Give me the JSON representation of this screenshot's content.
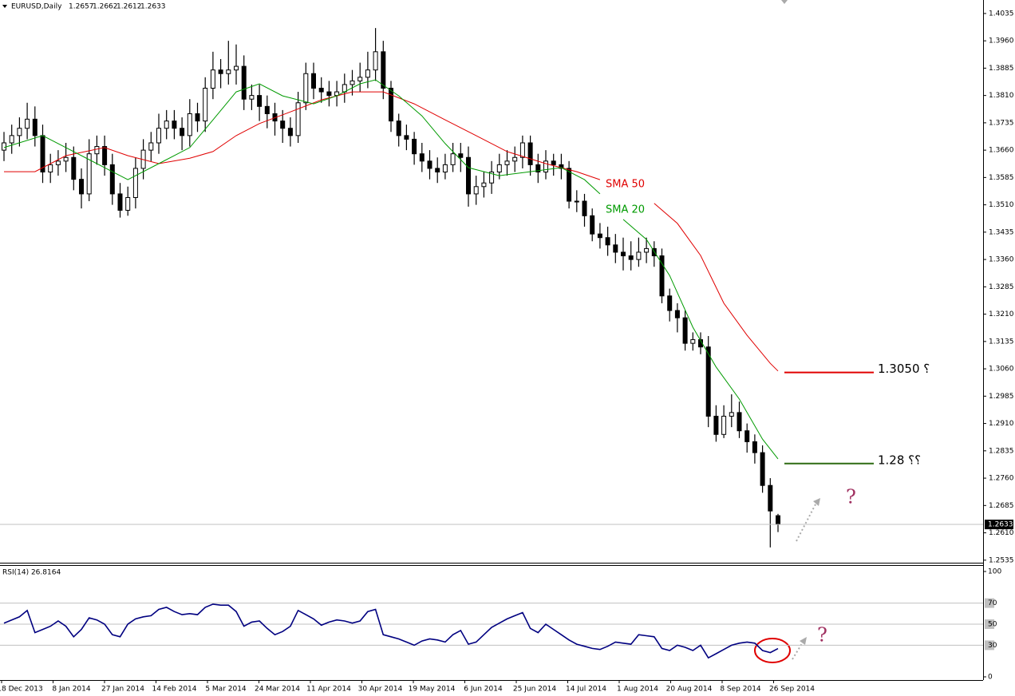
{
  "chart_data": {
    "type": "candlestick",
    "title": "EURUSD,Daily",
    "open": [
      1.366,
      1.368,
      1.37,
      1.372,
      1.3745,
      1.37,
      1.36,
      1.362,
      1.363,
      1.364,
      1.358,
      1.354,
      1.365,
      1.367,
      1.362,
      1.354,
      1.3495,
      1.353,
      1.361,
      1.366,
      1.368,
      1.372,
      1.374,
      1.372,
      1.37,
      1.376,
      1.374,
      1.383,
      1.388,
      1.387,
      1.388,
      1.389,
      1.38,
      1.381,
      1.378,
      1.376,
      1.374,
      1.372,
      1.37,
      1.379,
      1.387,
      1.383,
      1.382,
      1.381,
      1.382,
      1.384,
      1.385,
      1.386,
      1.388,
      1.393,
      1.383,
      1.374,
      1.37,
      1.369,
      1.365,
      1.363,
      1.361,
      1.36,
      1.362,
      1.365,
      1.364,
      1.354,
      1.356,
      1.357,
      1.36,
      1.362,
      1.363,
      1.364,
      1.368,
      1.362,
      1.36,
      1.363,
      1.362,
      1.361,
      1.352,
      1.352,
      1.348,
      1.343,
      1.342,
      1.34,
      1.338,
      1.337,
      1.336,
      1.338,
      1.339,
      1.337,
      1.326,
      1.322,
      1.32,
      1.313,
      1.314,
      1.312,
      1.293,
      1.288,
      1.293,
      1.294,
      1.289,
      1.286,
      1.283,
      1.274,
      1.2657
    ],
    "high": [
      1.371,
      1.373,
      1.375,
      1.379,
      1.378,
      1.373,
      1.365,
      1.366,
      1.368,
      1.367,
      1.361,
      1.369,
      1.37,
      1.37,
      1.365,
      1.357,
      1.356,
      1.364,
      1.369,
      1.371,
      1.376,
      1.377,
      1.377,
      1.375,
      1.38,
      1.379,
      1.386,
      1.393,
      1.391,
      1.396,
      1.395,
      1.392,
      1.384,
      1.384,
      1.381,
      1.379,
      1.377,
      1.375,
      1.382,
      1.39,
      1.39,
      1.386,
      1.385,
      1.385,
      1.387,
      1.388,
      1.39,
      1.393,
      1.3995,
      1.396,
      1.385,
      1.376,
      1.373,
      1.371,
      1.368,
      1.366,
      1.364,
      1.365,
      1.368,
      1.368,
      1.367,
      1.359,
      1.36,
      1.363,
      1.365,
      1.366,
      1.367,
      1.37,
      1.37,
      1.365,
      1.366,
      1.365,
      1.365,
      1.363,
      1.355,
      1.354,
      1.35,
      1.346,
      1.345,
      1.343,
      1.342,
      1.341,
      1.342,
      1.342,
      1.341,
      1.339,
      1.328,
      1.324,
      1.322,
      1.316,
      1.316,
      1.315,
      1.296,
      1.296,
      1.299,
      1.297,
      1.291,
      1.288,
      1.285,
      1.276,
      1.2662
    ],
    "low": [
      1.363,
      1.365,
      1.367,
      1.369,
      1.367,
      1.357,
      1.357,
      1.359,
      1.36,
      1.355,
      1.35,
      1.352,
      1.362,
      1.359,
      1.351,
      1.3475,
      1.348,
      1.35,
      1.358,
      1.363,
      1.365,
      1.369,
      1.369,
      1.366,
      1.367,
      1.371,
      1.371,
      1.38,
      1.383,
      1.384,
      1.384,
      1.377,
      1.377,
      1.374,
      1.372,
      1.37,
      1.368,
      1.367,
      1.368,
      1.377,
      1.38,
      1.379,
      1.378,
      1.378,
      1.379,
      1.381,
      1.382,
      1.383,
      1.385,
      1.38,
      1.371,
      1.367,
      1.366,
      1.362,
      1.36,
      1.358,
      1.357,
      1.358,
      1.36,
      1.36,
      1.3505,
      1.351,
      1.353,
      1.354,
      1.358,
      1.359,
      1.36,
      1.361,
      1.359,
      1.357,
      1.358,
      1.359,
      1.358,
      1.35,
      1.349,
      1.345,
      1.341,
      1.339,
      1.337,
      1.335,
      1.333,
      1.333,
      1.334,
      1.335,
      1.334,
      1.324,
      1.319,
      1.316,
      1.311,
      1.311,
      1.31,
      1.29,
      1.286,
      1.287,
      1.29,
      1.287,
      1.283,
      1.28,
      1.272,
      1.257,
      1.2612
    ],
    "close": [
      1.368,
      1.37,
      1.372,
      1.3745,
      1.37,
      1.36,
      1.362,
      1.363,
      1.364,
      1.358,
      1.354,
      1.365,
      1.367,
      1.362,
      1.354,
      1.3495,
      1.353,
      1.361,
      1.366,
      1.368,
      1.372,
      1.374,
      1.372,
      1.37,
      1.376,
      1.374,
      1.383,
      1.388,
      1.387,
      1.388,
      1.389,
      1.38,
      1.381,
      1.378,
      1.376,
      1.374,
      1.372,
      1.37,
      1.379,
      1.387,
      1.383,
      1.382,
      1.381,
      1.382,
      1.384,
      1.385,
      1.386,
      1.388,
      1.393,
      1.383,
      1.374,
      1.37,
      1.369,
      1.365,
      1.363,
      1.361,
      1.36,
      1.362,
      1.365,
      1.364,
      1.354,
      1.356,
      1.357,
      1.36,
      1.362,
      1.363,
      1.364,
      1.368,
      1.362,
      1.36,
      1.363,
      1.362,
      1.361,
      1.352,
      1.352,
      1.348,
      1.343,
      1.342,
      1.34,
      1.338,
      1.337,
      1.336,
      1.338,
      1.339,
      1.337,
      1.326,
      1.322,
      1.32,
      1.313,
      1.314,
      1.312,
      1.293,
      1.288,
      1.293,
      1.294,
      1.289,
      1.286,
      1.283,
      1.274,
      1.267,
      1.2633
    ],
    "ylim": [
      1.2528,
      1.4072
    ],
    "yticks": [
      1.4035,
      {
        "value": 1.396,
        "label": "1.3960"
      },
      1.3885,
      {
        "value": 1.381,
        "label": "1.3810"
      },
      1.3735,
      {
        "value": 1.366,
        "label": "1.3660"
      },
      1.3585,
      {
        "value": 1.351,
        "label": "1.3510"
      },
      1.3435,
      {
        "value": 1.336,
        "label": "1.3360"
      },
      1.3285,
      {
        "value": 1.321,
        "label": "1.3210"
      },
      1.3135,
      {
        "value": 1.306,
        "label": "1.3060"
      },
      1.2985,
      {
        "value": 1.291,
        "label": "1.2910"
      },
      1.2835,
      {
        "value": 1.276,
        "label": "1.2760"
      },
      1.2685,
      {
        "value": 1.261,
        "label": "1.2610"
      },
      1.2535
    ],
    "x_labels": [
      "18 Dec 2013",
      "8 Jan 2014",
      "27 Jan 2014",
      "14 Feb 2014",
      "5 Mar 2014",
      "24 Mar 2014",
      "11 Apr 2014",
      "30 Apr 2014",
      "19 May 2014",
      "6 Jun 2014",
      "25 Jun 2014",
      "14 Jul 2014",
      "1 Aug 2014",
      "20 Aug 2014",
      "8 Sep 2014",
      "26 Sep 2014"
    ],
    "series": [
      {
        "name": "SMA 50",
        "color": "#e00000",
        "x": [
          0,
          4,
          8,
          13,
          16,
          20,
          24,
          27,
          30,
          33,
          37,
          41,
          45,
          49,
          53,
          57,
          61,
          65,
          70,
          74,
          77,
          78,
          84,
          87,
          90,
          93,
          96,
          99,
          100
        ],
        "values": [
          1.3601,
          1.3601,
          1.3645,
          1.3667,
          1.3645,
          1.3623,
          1.3638,
          1.3656,
          1.37,
          1.3733,
          1.3765,
          1.3798,
          1.382,
          1.382,
          1.3787,
          1.3743,
          1.37,
          1.3656,
          1.3623,
          1.3601,
          1.3579,
          null,
          1.3514,
          1.3459,
          1.3371,
          1.324,
          1.3152,
          1.3075,
          1.3054
        ]
      },
      {
        "name": "SMA 20",
        "color": "#009a00",
        "x": [
          0,
          5,
          8,
          11,
          14,
          16,
          20,
          24,
          27,
          30,
          33,
          36,
          40,
          43,
          46,
          48,
          51,
          54,
          57,
          60,
          64,
          68,
          72,
          75,
          77,
          78,
          80,
          83,
          86,
          89,
          92,
          95,
          98,
          100
        ],
        "values": [
          1.3667,
          1.37,
          1.3667,
          1.3634,
          1.3601,
          1.3579,
          1.3623,
          1.3667,
          1.3743,
          1.382,
          1.3842,
          1.3809,
          1.3787,
          1.3809,
          1.3842,
          1.3853,
          1.3809,
          1.3754,
          1.3678,
          1.3612,
          1.359,
          1.3601,
          1.3612,
          1.3579,
          1.354,
          null,
          1.347,
          1.3415,
          1.3316,
          1.3174,
          1.3065,
          1.2977,
          1.2867,
          1.2813
        ]
      }
    ],
    "levels": [
      {
        "value": 1.305,
        "label": "؟ 1.3050",
        "color": "#e00000"
      },
      {
        "value": 1.28,
        "label": "؟؟ 1.28",
        "color": "#2e6b12"
      }
    ],
    "annotations": [
      "?",
      "?"
    ],
    "indicator": {
      "title": "RSI(14) 26.8164",
      "ylim": [
        0,
        100
      ],
      "yticks": [
        0,
        30,
        50,
        70,
        100
      ],
      "color": "#000080",
      "values": [
        51,
        54,
        57,
        63,
        42,
        45,
        48,
        53,
        48,
        38,
        45,
        56,
        54,
        50,
        40,
        38,
        50,
        55,
        57,
        58,
        64,
        66,
        62,
        59,
        60,
        59,
        66,
        69,
        68,
        68,
        62,
        48,
        52,
        53,
        46,
        40,
        43,
        48,
        63,
        59,
        55,
        49,
        52,
        54,
        53,
        51,
        53,
        62,
        64,
        40,
        38,
        36,
        33,
        30,
        34,
        36,
        35,
        33,
        40,
        44,
        31,
        33,
        40,
        47,
        51,
        55,
        58,
        61,
        46,
        42,
        50,
        45,
        40,
        35,
        31,
        29,
        27,
        26,
        29,
        33,
        32,
        31,
        40,
        39,
        38,
        27,
        25,
        30,
        28,
        25,
        30,
        18,
        22,
        26,
        30,
        32,
        33,
        32,
        25,
        23,
        26.8164
      ]
    }
  }
}
